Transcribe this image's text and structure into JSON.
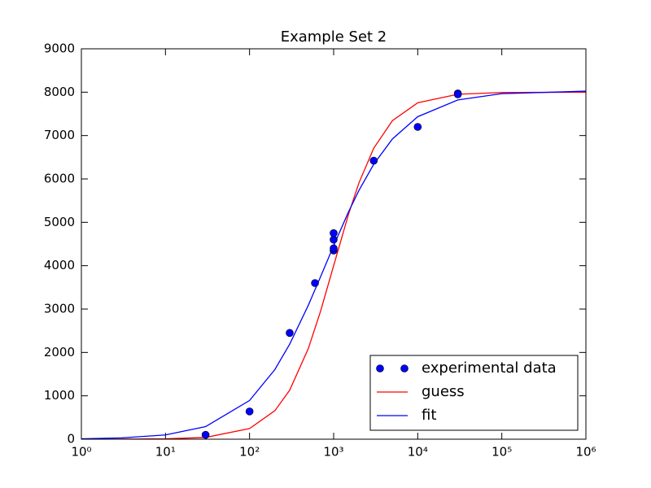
{
  "chart_data": {
    "type": "line",
    "title": "Example Set 2",
    "xscale": "log",
    "xlim": [
      1,
      1000000
    ],
    "ylim": [
      0,
      9000
    ],
    "xticks": [
      {
        "value": 1,
        "label": "10⁰"
      },
      {
        "value": 10,
        "label": "10¹"
      },
      {
        "value": 100,
        "label": "10²"
      },
      {
        "value": 1000,
        "label": "10³"
      },
      {
        "value": 10000,
        "label": "10⁴"
      },
      {
        "value": 100000,
        "label": "10⁵"
      },
      {
        "value": 1000000,
        "label": "10⁶"
      }
    ],
    "yticks": [
      0,
      1000,
      2000,
      3000,
      4000,
      5000,
      6000,
      7000,
      8000,
      9000
    ],
    "grid": false,
    "legend": "lower right",
    "series": [
      {
        "name": "experimental data",
        "color": "#0000ff",
        "mode": "markers",
        "x": [
          30,
          100,
          300,
          600,
          1000,
          1000,
          1000,
          1000,
          3000,
          10000,
          30000,
          30000
        ],
        "values": [
          100,
          640,
          2450,
          3600,
          4350,
          4400,
          4600,
          4750,
          6420,
          7200,
          7970,
          7950
        ]
      },
      {
        "name": "guess",
        "color": "#ff0000",
        "mode": "line",
        "x": [
          1,
          3,
          10,
          30,
          100,
          200,
          300,
          500,
          700,
          1000,
          1500,
          2000,
          3000,
          5000,
          10000,
          30000,
          100000,
          1000000
        ],
        "values": [
          0,
          1,
          8,
          41,
          245,
          657,
          1129,
          2090,
          2955,
          4000,
          5180,
          5910,
          6709,
          7343,
          7755,
          7952,
          7992,
          8000
        ]
      },
      {
        "name": "fit",
        "color": "#0000ff",
        "mode": "line",
        "x": [
          1,
          3,
          10,
          30,
          100,
          200,
          300,
          500,
          700,
          1000,
          1500,
          2000,
          3000,
          5000,
          10000,
          30000,
          100000,
          1000000
        ],
        "values": [
          10,
          30,
          99,
          290,
          892,
          1606,
          2190,
          3088,
          3747,
          4461,
          5237,
          5736,
          6340,
          6922,
          7435,
          7821,
          7966,
          8024
        ]
      }
    ]
  }
}
